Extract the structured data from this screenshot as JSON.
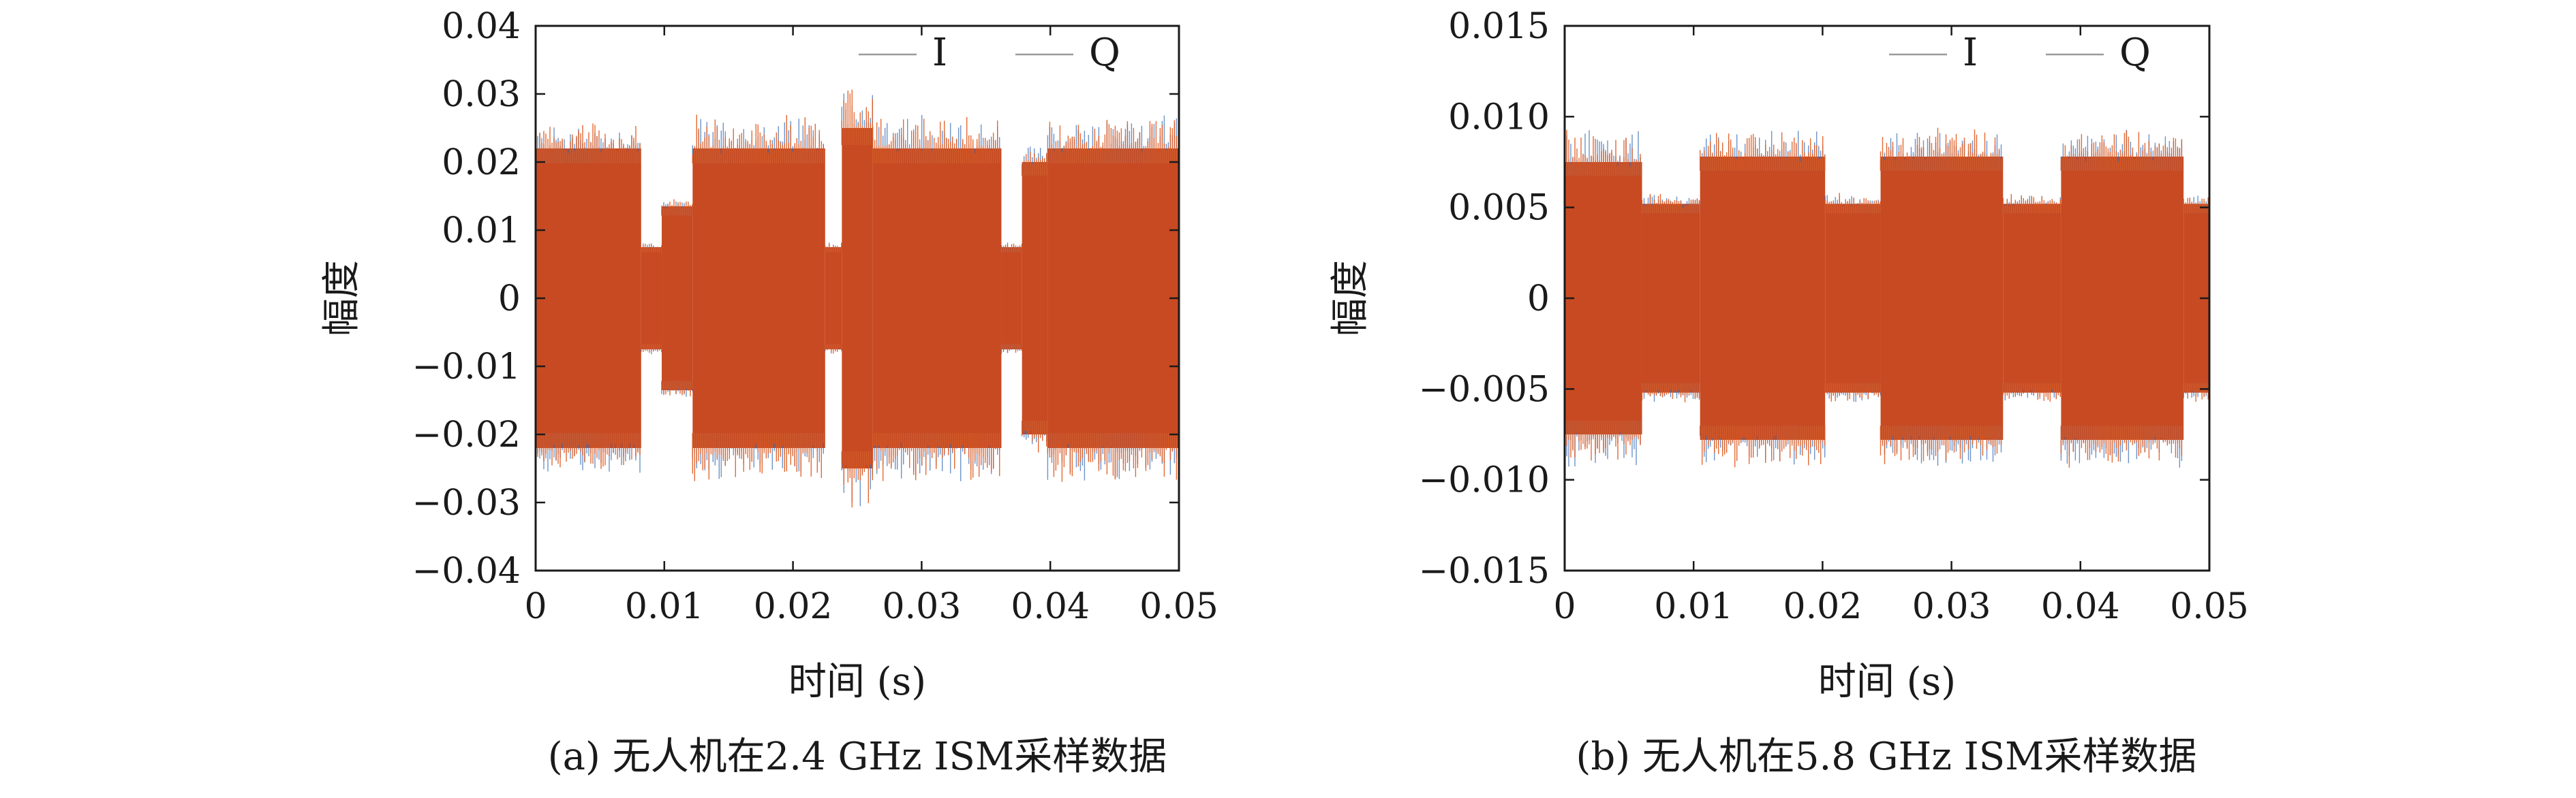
{
  "figure": {
    "colors": {
      "I": "#3b6fb6",
      "Q": "#e05a1e",
      "band": "#c84a22",
      "frame": "#1a1a1a",
      "legend_line": "#9a9a9a"
    }
  },
  "chart_data": [
    {
      "type": "line",
      "caption": "(a) 无人机在2.4 GHz ISM采样数据",
      "title": "",
      "xlabel": "时间 (s)",
      "ylabel": "幅度",
      "xlim": [
        0,
        0.05
      ],
      "ylim": [
        -0.04,
        0.04
      ],
      "xticks": [
        0,
        0.01,
        0.02,
        0.03,
        0.04,
        0.05
      ],
      "xtick_labels": [
        "0",
        "0.01",
        "0.02",
        "0.03",
        "0.04",
        "0.05"
      ],
      "yticks": [
        -0.04,
        -0.03,
        -0.02,
        -0.01,
        0,
        0.01,
        0.02,
        0.03,
        0.04
      ],
      "ytick_labels": [
        "−0.04",
        "−0.03",
        "−0.02",
        "−0.01",
        "0",
        "0.01",
        "0.02",
        "0.03",
        "0.04"
      ],
      "legend": {
        "position": "top-right",
        "entries": [
          "I",
          "Q"
        ]
      },
      "envelope": [
        {
          "x0": 0.0,
          "x1": 0.0082,
          "amp": 0.022,
          "peak": 0.025
        },
        {
          "x0": 0.0082,
          "x1": 0.0098,
          "amp": 0.0075,
          "peak": 0.008
        },
        {
          "x0": 0.0098,
          "x1": 0.0122,
          "amp": 0.0135,
          "peak": 0.014
        },
        {
          "x0": 0.0122,
          "x1": 0.0225,
          "amp": 0.022,
          "peak": 0.026
        },
        {
          "x0": 0.0225,
          "x1": 0.0238,
          "amp": 0.0075,
          "peak": 0.008
        },
        {
          "x0": 0.0238,
          "x1": 0.0262,
          "amp": 0.025,
          "peak": 0.03
        },
        {
          "x0": 0.0262,
          "x1": 0.0362,
          "amp": 0.022,
          "peak": 0.026
        },
        {
          "x0": 0.0362,
          "x1": 0.0378,
          "amp": 0.0075,
          "peak": 0.008
        },
        {
          "x0": 0.0378,
          "x1": 0.0398,
          "amp": 0.02,
          "peak": 0.022
        },
        {
          "x0": 0.0398,
          "x1": 0.05,
          "amp": 0.022,
          "peak": 0.026
        }
      ],
      "series": [
        {
          "name": "I"
        },
        {
          "name": "Q"
        }
      ]
    },
    {
      "type": "line",
      "caption": "(b) 无人机在5.8 GHz ISM采样数据",
      "title": "",
      "xlabel": "时间 (s)",
      "ylabel": "幅度",
      "xlim": [
        0,
        0.05
      ],
      "ylim": [
        -0.015,
        0.015
      ],
      "xticks": [
        0,
        0.01,
        0.02,
        0.03,
        0.04,
        0.05
      ],
      "xtick_labels": [
        "0",
        "0.01",
        "0.02",
        "0.03",
        "0.04",
        "0.05"
      ],
      "yticks": [
        -0.015,
        -0.01,
        -0.005,
        0,
        0.005,
        0.01,
        0.015
      ],
      "ytick_labels": [
        "−0.015",
        "−0.010",
        "−0.005",
        "0",
        "0.005",
        "0.010",
        "0.015"
      ],
      "legend": {
        "position": "top-right",
        "entries": [
          "I",
          "Q"
        ]
      },
      "envelope": [
        {
          "x0": 0.0,
          "x1": 0.006,
          "amp": 0.0075,
          "peak": 0.009
        },
        {
          "x0": 0.006,
          "x1": 0.0105,
          "amp": 0.0052,
          "peak": 0.0056
        },
        {
          "x0": 0.0105,
          "x1": 0.0202,
          "amp": 0.0078,
          "peak": 0.009
        },
        {
          "x0": 0.0202,
          "x1": 0.0245,
          "amp": 0.0052,
          "peak": 0.0056
        },
        {
          "x0": 0.0245,
          "x1": 0.034,
          "amp": 0.0078,
          "peak": 0.009
        },
        {
          "x0": 0.034,
          "x1": 0.0385,
          "amp": 0.0052,
          "peak": 0.0056
        },
        {
          "x0": 0.0385,
          "x1": 0.048,
          "amp": 0.0078,
          "peak": 0.009
        },
        {
          "x0": 0.048,
          "x1": 0.05,
          "amp": 0.0052,
          "peak": 0.0056
        }
      ],
      "series": [
        {
          "name": "I"
        },
        {
          "name": "Q"
        }
      ]
    }
  ]
}
